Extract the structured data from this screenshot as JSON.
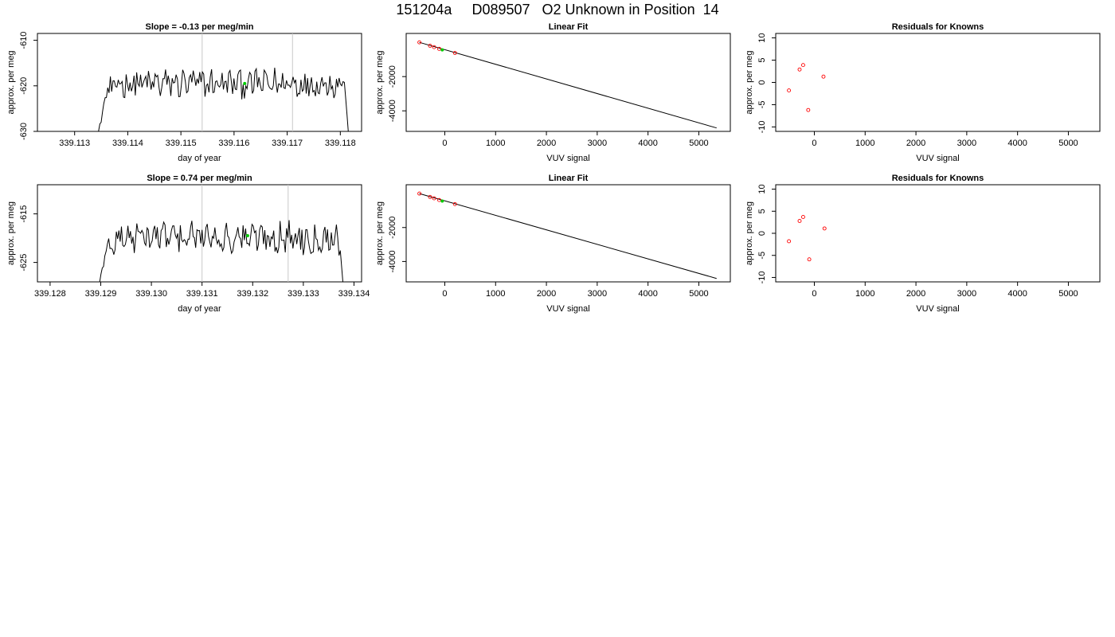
{
  "page_title": "151204a     D089507   O2 Unknown in Position  14",
  "colors": {
    "trace": "#000000",
    "current_point": "#00cc00",
    "known_points": "#ff0000",
    "cycle_markers": "#c8c8c8"
  },
  "chart_data": [
    {
      "id": "trace-1",
      "type": "line",
      "title": "Slope =  -0.13  per meg/min",
      "xlabel": "day of year",
      "ylabel": "approx. per meg",
      "xlim": [
        339.1123,
        339.1184
      ],
      "ylim": [
        -630,
        -608.5
      ],
      "xticks": [
        "339.113",
        "339.114",
        "339.115",
        "339.116",
        "339.117",
        "339.118"
      ],
      "yticks": [
        "-630",
        "-620",
        "-610"
      ],
      "markers_x": [
        339.1154,
        339.1171
      ],
      "current_point": {
        "x": 339.1162,
        "y": -619.5
      },
      "seed": 12345,
      "x_span": [
        339.11345,
        339.11815
      ],
      "level": -619.5
    },
    {
      "id": "fit-1",
      "type": "line",
      "title": "Linear Fit",
      "xlabel": "VUV signal",
      "ylabel": "approx. per meg",
      "xlim": [
        -760,
        5620
      ],
      "ylim": [
        -5200,
        520
      ],
      "xticks": [
        "0",
        "1000",
        "2000",
        "3000",
        "4000",
        "5000"
      ],
      "yticks": [
        "-4000",
        "-2000"
      ],
      "line": [
        [
          -500,
          0
        ],
        [
          5350,
          -5000
        ]
      ],
      "knowns": [
        [
          -500,
          0
        ],
        [
          -290,
          -200
        ],
        [
          -210,
          -280
        ],
        [
          -110,
          -380
        ],
        [
          200,
          -620
        ]
      ],
      "current_point": {
        "x": -50,
        "y": -440
      }
    },
    {
      "id": "resid-1",
      "type": "scatter",
      "title": "Residuals for Knowns",
      "xlabel": "VUV signal",
      "ylabel": "approx. per meg",
      "xlim": [
        -760,
        5620
      ],
      "ylim": [
        -11,
        11
      ],
      "xticks": [
        "0",
        "1000",
        "2000",
        "3000",
        "4000",
        "5000"
      ],
      "yticks": [
        "-10",
        "-5",
        "0",
        "5",
        "10"
      ],
      "points": [
        [
          -500,
          -1.8
        ],
        [
          -290,
          2.9
        ],
        [
          -220,
          3.9
        ],
        [
          -120,
          -6.2
        ],
        [
          180,
          1.3
        ]
      ]
    },
    {
      "id": "trace-2",
      "type": "line",
      "title": "Slope =  0.74  per meg/min",
      "xlabel": "day of year",
      "ylabel": "approx. per meg",
      "xlim": [
        339.12775,
        339.13415
      ],
      "ylim": [
        -629,
        -609
      ],
      "xticks": [
        "339.128",
        "339.129",
        "339.130",
        "339.131",
        "339.132",
        "339.133",
        "339.134"
      ],
      "yticks": [
        "-625",
        "-615"
      ],
      "markers_x": [
        339.131,
        339.1327
      ],
      "current_point": {
        "x": 339.1319,
        "y": -619.5
      },
      "seed": 67890,
      "x_span": [
        339.12898,
        339.13378
      ],
      "level": -619.8
    },
    {
      "id": "fit-2",
      "type": "line",
      "title": "Linear Fit",
      "xlabel": "VUV signal",
      "ylabel": "approx. per meg",
      "xlim": [
        -760,
        5620
      ],
      "ylim": [
        -5200,
        520
      ],
      "xticks": [
        "0",
        "1000",
        "2000",
        "3000",
        "4000",
        "5000"
      ],
      "yticks": [
        "-4000",
        "-2000"
      ],
      "line": [
        [
          -500,
          0
        ],
        [
          5350,
          -5000
        ]
      ],
      "knowns": [
        [
          -500,
          0
        ],
        [
          -290,
          -200
        ],
        [
          -210,
          -280
        ],
        [
          -110,
          -380
        ],
        [
          200,
          -620
        ]
      ],
      "current_point": {
        "x": -50,
        "y": -440
      }
    },
    {
      "id": "resid-2",
      "type": "scatter",
      "title": "Residuals for Knowns",
      "xlabel": "VUV signal",
      "ylabel": "approx. per meg",
      "xlim": [
        -760,
        5620
      ],
      "ylim": [
        -11,
        11
      ],
      "xticks": [
        "0",
        "1000",
        "2000",
        "3000",
        "4000",
        "5000"
      ],
      "yticks": [
        "-10",
        "-5",
        "0",
        "5",
        "10"
      ],
      "points": [
        [
          -500,
          -1.8
        ],
        [
          -290,
          2.8
        ],
        [
          -220,
          3.7
        ],
        [
          -100,
          -5.9
        ],
        [
          200,
          1.1
        ]
      ]
    }
  ]
}
